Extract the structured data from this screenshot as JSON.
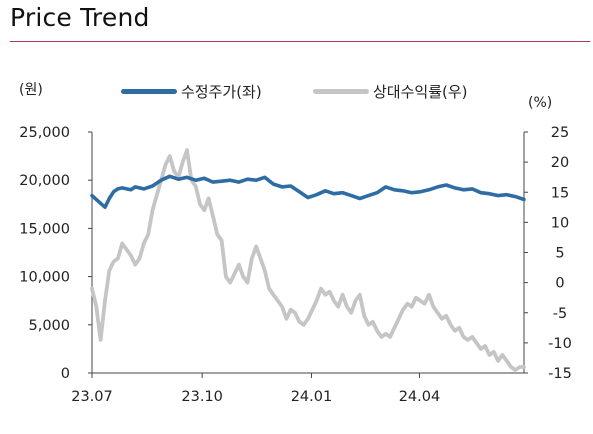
{
  "chart_data": {
    "type": "line",
    "title": "Price Trend",
    "left_axis_unit": "(원)",
    "right_axis_unit": "(%)",
    "x_tick_labels": [
      "23.07",
      "23.10",
      "24.01",
      "24.04"
    ],
    "y_left_ticks": [
      "25,000",
      "20,000",
      "15,000",
      "10,000",
      "5,000",
      "0"
    ],
    "y_left_range": [
      0,
      25000
    ],
    "y_right_ticks": [
      "25",
      "20",
      "15",
      "10",
      "5",
      "0",
      "-5",
      "-10",
      "-15"
    ],
    "y_right_range": [
      -15,
      25
    ],
    "grid": false,
    "legend_position": "top",
    "series": [
      {
        "name": "수정주가(좌)",
        "axis": "left",
        "color": "#2e6ca4",
        "x": [
          0,
          2,
          3,
          4,
          5,
          6,
          7,
          9,
          10,
          12,
          14,
          16,
          18,
          20,
          22,
          24,
          26,
          28,
          30,
          32,
          34,
          36,
          38,
          40,
          42,
          44,
          46,
          48,
          50,
          52,
          54,
          56,
          58,
          60,
          62,
          64,
          66,
          68,
          70,
          72,
          74,
          76,
          78,
          80,
          82,
          84,
          86,
          88,
          90,
          92,
          94,
          96,
          98,
          100
        ],
        "values": [
          18400,
          17600,
          17200,
          18100,
          18800,
          19100,
          19200,
          19000,
          19300,
          19100,
          19400,
          20000,
          20400,
          20100,
          20300,
          20000,
          20200,
          19800,
          19900,
          20000,
          19800,
          20100,
          20000,
          20300,
          19600,
          19300,
          19400,
          18800,
          18200,
          18500,
          18900,
          18600,
          18700,
          18400,
          18100,
          18400,
          18700,
          19300,
          19000,
          18900,
          18700,
          18800,
          19000,
          19300,
          19500,
          19200,
          19000,
          19100,
          18700,
          18600,
          18400,
          18500,
          18300,
          18000
        ]
      },
      {
        "name": "상대수익률(우)",
        "axis": "right",
        "color": "#c5c5c5",
        "x": [
          0,
          1,
          2,
          3,
          4,
          5,
          6,
          7,
          8,
          9,
          10,
          11,
          12,
          13,
          14,
          15,
          16,
          17,
          18,
          19,
          20,
          21,
          22,
          23,
          24,
          25,
          26,
          27,
          28,
          29,
          30,
          31,
          32,
          33,
          34,
          35,
          36,
          37,
          38,
          39,
          40,
          41,
          42,
          43,
          44,
          45,
          46,
          47,
          48,
          49,
          50,
          51,
          52,
          53,
          54,
          55,
          56,
          57,
          58,
          59,
          60,
          61,
          62,
          63,
          64,
          65,
          66,
          67,
          68,
          69,
          70,
          71,
          72,
          73,
          74,
          75,
          76,
          77,
          78,
          79,
          80,
          81,
          82,
          83,
          84,
          85,
          86,
          87,
          88,
          89,
          90,
          91,
          92,
          93,
          94,
          95,
          96,
          97,
          98,
          99,
          100
        ],
        "values": [
          -1,
          -4,
          -9.5,
          -3,
          2,
          3.5,
          4,
          6.5,
          5.5,
          4.5,
          3,
          4,
          6.5,
          8,
          12,
          14.5,
          17,
          19.5,
          21,
          18.5,
          17.5,
          20,
          22,
          17,
          16,
          13,
          12,
          14,
          11,
          8,
          7,
          1,
          0,
          1.5,
          3,
          1,
          0,
          4,
          6,
          4,
          2,
          -1,
          -2,
          -3,
          -4,
          -6,
          -4.5,
          -5,
          -6.5,
          -7,
          -6,
          -4.5,
          -3,
          -1,
          -2,
          -1.5,
          -3,
          -4,
          -2,
          -4,
          -5,
          -3,
          -2,
          -5.5,
          -7,
          -6.5,
          -8,
          -9,
          -8.5,
          -9,
          -7.5,
          -6,
          -4.5,
          -3.5,
          -4,
          -2.5,
          -3,
          -3.5,
          -2,
          -4,
          -5,
          -6,
          -5.5,
          -7,
          -8,
          -7.5,
          -9,
          -9.5,
          -9,
          -10,
          -11,
          -10.5,
          -12,
          -11.5,
          -13,
          -12,
          -13,
          -14,
          -14.5,
          -14,
          -14
        ]
      }
    ]
  }
}
